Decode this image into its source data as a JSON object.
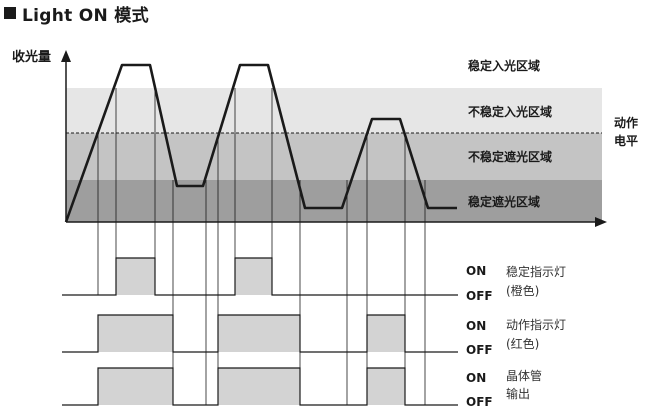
{
  "title": "Light ON 模式",
  "y_axis_label": "收光量",
  "zones": {
    "stable_light": "稳定入光区域",
    "unstable_light": "不稳定入光区域",
    "unstable_dark": "不稳定遮光区域",
    "stable_dark": "稳定遮光区域"
  },
  "operation_level": [
    "动作",
    "电平"
  ],
  "signals": [
    {
      "on": "ON",
      "off": "OFF",
      "name": "稳定指示灯",
      "note": "(橙色)"
    },
    {
      "on": "ON",
      "off": "OFF",
      "name": "动作指示灯",
      "note": "(红色)"
    },
    {
      "on": "ON",
      "off": "OFF",
      "name": "晶体管",
      "note": "输出"
    }
  ],
  "colors": {
    "unstable_light_zone": "#e6e6e6",
    "unstable_dark_zone": "#c4c4c4",
    "stable_dark_zone": "#9e9e9e",
    "pulse_fill": "#d3d3d3",
    "line": "#1a1a1a"
  }
}
